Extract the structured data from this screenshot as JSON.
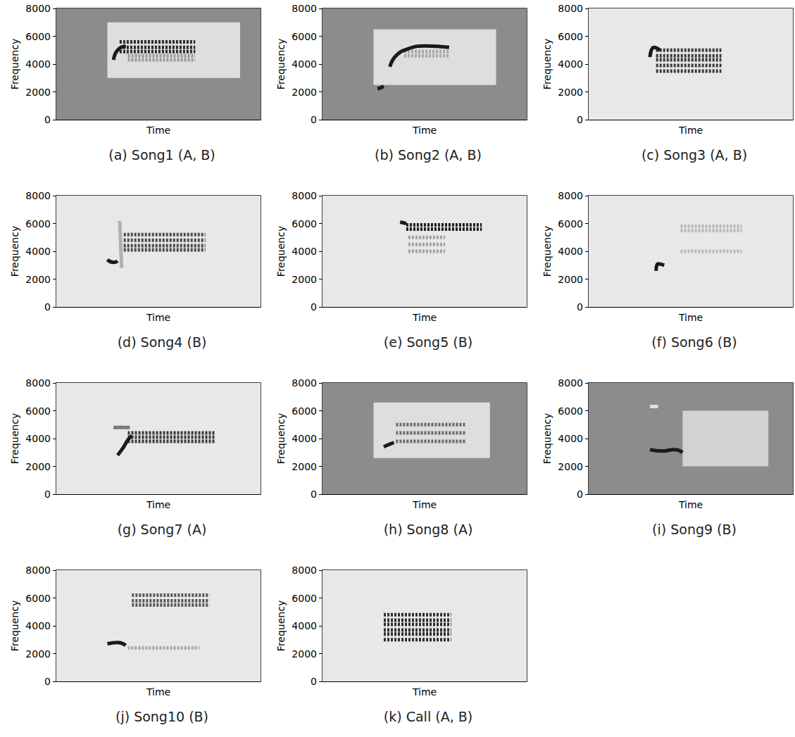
{
  "chart_data": [
    {
      "type": "spectrogram",
      "title": "(a) Song1 (A, B)",
      "xlabel": "Time",
      "ylabel": "Frequency",
      "xlim": [
        0,
        100
      ],
      "ylim": [
        0,
        8000
      ],
      "yticks": [
        0,
        2000,
        4000,
        6000,
        8000
      ],
      "tick_labels": "y",
      "layers": [
        {
          "type": "area",
          "t": [
            0,
            100
          ],
          "f": [
            0,
            8000
          ],
          "color": "#8c8c8c"
        },
        {
          "type": "area",
          "t": [
            25,
            90
          ],
          "f": [
            3000,
            7000
          ],
          "color": "#dedede"
        },
        {
          "type": "harmonics",
          "t": [
            35,
            68
          ],
          "f": [
            4300,
            4600
          ],
          "color": "#9a9a9a"
        },
        {
          "type": "harmonics",
          "t": [
            31,
            68
          ],
          "f": [
            4900,
            5200,
            5600
          ],
          "color": "#2a2a2a"
        },
        {
          "type": "line",
          "t": [
            28,
            30,
            34
          ],
          "f": [
            4300,
            5000,
            5300
          ],
          "color": "#1a1a1a"
        }
      ]
    },
    {
      "type": "spectrogram",
      "title": "(b) Song2 (A, B)",
      "xlabel": "Time",
      "ylabel": "Frequency",
      "xlim": [
        0,
        100
      ],
      "ylim": [
        0,
        8000
      ],
      "yticks": [
        0,
        2000,
        4000,
        6000,
        8000
      ],
      "tick_labels": "y",
      "layers": [
        {
          "type": "area",
          "t": [
            0,
            100
          ],
          "f": [
            0,
            8000
          ],
          "color": "#8c8c8c"
        },
        {
          "type": "area",
          "t": [
            25,
            85
          ],
          "f": [
            2500,
            6500
          ],
          "color": "#dedede"
        },
        {
          "type": "harmonics",
          "t": [
            40,
            62
          ],
          "f": [
            4600,
            4900
          ],
          "color": "#a8a8a8"
        },
        {
          "type": "line",
          "t": [
            27,
            30
          ],
          "f": [
            2200,
            2400
          ],
          "color": "#1a1a1a"
        },
        {
          "type": "line",
          "t": [
            33,
            36,
            42,
            50,
            62
          ],
          "f": [
            3800,
            4600,
            5100,
            5300,
            5200
          ],
          "color": "#1a1a1a"
        }
      ]
    },
    {
      "type": "spectrogram",
      "title": "(c) Song3 (A, B)",
      "xlabel": "Time",
      "ylabel": "Frequency",
      "xlim": [
        0,
        100
      ],
      "ylim": [
        0,
        8000
      ],
      "yticks": [
        0,
        2000,
        4000,
        6000,
        8000
      ],
      "tick_labels": "y",
      "layers": [
        {
          "type": "area",
          "t": [
            0,
            100
          ],
          "f": [
            0,
            8000
          ],
          "color": "#e8e8e8"
        },
        {
          "type": "harmonics",
          "t": [
            33,
            65
          ],
          "f": [
            3500,
            3900,
            4300,
            4600,
            5000
          ],
          "color": "#3a3a3a"
        },
        {
          "type": "line",
          "t": [
            30,
            32,
            35
          ],
          "f": [
            4500,
            5200,
            5000
          ],
          "color": "#1a1a1a"
        }
      ]
    },
    {
      "type": "spectrogram",
      "title": "(d) Song4 (B)",
      "xlabel": "Time",
      "ylabel": "Frequency",
      "xlim": [
        0,
        100
      ],
      "ylim": [
        0,
        8000
      ],
      "yticks": [
        0,
        2000,
        4000,
        6000,
        8000
      ],
      "tick_labels": "y",
      "layers": [
        {
          "type": "area",
          "t": [
            0,
            100
          ],
          "f": [
            0,
            8000
          ],
          "color": "#e8e8e8"
        },
        {
          "type": "line",
          "t": [
            32,
            31
          ],
          "f": [
            2800,
            6200
          ],
          "color": "#b0b0b0"
        },
        {
          "type": "harmonics",
          "t": [
            33,
            73
          ],
          "f": [
            4100,
            4400,
            4800,
            5200
          ],
          "color": "#4a4a4a"
        },
        {
          "type": "line",
          "t": [
            25,
            28,
            30
          ],
          "f": [
            3400,
            3200,
            3300
          ],
          "color": "#1a1a1a"
        }
      ]
    },
    {
      "type": "spectrogram",
      "title": "(e) Song5 (B)",
      "xlabel": "Time",
      "ylabel": "Frequency",
      "xlim": [
        0,
        100
      ],
      "ylim": [
        0,
        8000
      ],
      "yticks": [
        0,
        2000,
        4000,
        6000,
        8000
      ],
      "tick_labels": "y",
      "layers": [
        {
          "type": "area",
          "t": [
            0,
            100
          ],
          "f": [
            0,
            8000
          ],
          "color": "#e8e8e8"
        },
        {
          "type": "harmonics",
          "t": [
            42,
            60
          ],
          "f": [
            4000,
            4500,
            5000
          ],
          "color": "#a0a0a0"
        },
        {
          "type": "harmonics",
          "t": [
            41,
            78
          ],
          "f": [
            5600,
            5900
          ],
          "color": "#1a1a1a"
        },
        {
          "type": "line",
          "t": [
            38,
            41
          ],
          "f": [
            6100,
            6000
          ],
          "color": "#1a1a1a"
        }
      ]
    },
    {
      "type": "spectrogram",
      "title": "(f) Song6 (B)",
      "xlabel": "Time",
      "ylabel": "Frequency",
      "xlim": [
        0,
        100
      ],
      "ylim": [
        0,
        8000
      ],
      "yticks": [
        0,
        2000,
        4000,
        6000,
        8000
      ],
      "tick_labels": "y",
      "layers": [
        {
          "type": "area",
          "t": [
            0,
            100
          ],
          "f": [
            0,
            8000
          ],
          "color": "#e8e8e8"
        },
        {
          "type": "harmonics",
          "t": [
            45,
            75
          ],
          "f": [
            4000,
            5500,
            5800
          ],
          "color": "#b8b8b8"
        },
        {
          "type": "line",
          "t": [
            33,
            34,
            37
          ],
          "f": [
            2600,
            3100,
            3000
          ],
          "color": "#1a1a1a"
        }
      ]
    },
    {
      "type": "spectrogram",
      "title": "(g) Song7 (A)",
      "xlabel": "Time",
      "ylabel": "Frequency",
      "xlim": [
        0,
        100
      ],
      "ylim": [
        0,
        8000
      ],
      "yticks": [
        0,
        2000,
        4000,
        6000,
        8000
      ],
      "tick_labels": "y",
      "layers": [
        {
          "type": "area",
          "t": [
            0,
            100
          ],
          "f": [
            0,
            8000
          ],
          "color": "#e8e8e8"
        },
        {
          "type": "line",
          "t": [
            28,
            36
          ],
          "f": [
            4800,
            4800
          ],
          "color": "#7a7a7a"
        },
        {
          "type": "harmonics",
          "t": [
            35,
            78
          ],
          "f": [
            3800,
            4100,
            4400
          ],
          "color": "#3a3a3a"
        },
        {
          "type": "line",
          "t": [
            30,
            33,
            35,
            37
          ],
          "f": [
            2800,
            3400,
            3900,
            4200
          ],
          "color": "#1a1a1a"
        }
      ]
    },
    {
      "type": "spectrogram",
      "title": "(h) Song8 (A)",
      "xlabel": "Time",
      "ylabel": "Frequency",
      "xlim": [
        0,
        100
      ],
      "ylim": [
        0,
        8000
      ],
      "yticks": [
        0,
        2000,
        4000,
        6000,
        8000
      ],
      "tick_labels": "y",
      "layers": [
        {
          "type": "area",
          "t": [
            0,
            100
          ],
          "f": [
            0,
            8000
          ],
          "color": "#8c8c8c"
        },
        {
          "type": "area",
          "t": [
            25,
            82
          ],
          "f": [
            2600,
            6600
          ],
          "color": "#dedede"
        },
        {
          "type": "harmonics",
          "t": [
            36,
            70
          ],
          "f": [
            3800,
            4400,
            5000
          ],
          "color": "#6a6a6a"
        },
        {
          "type": "line",
          "t": [
            30,
            33,
            35
          ],
          "f": [
            3400,
            3600,
            3700
          ],
          "color": "#1a1a1a"
        }
      ]
    },
    {
      "type": "spectrogram",
      "title": "(i) Song9 (B)",
      "xlabel": "Time",
      "ylabel": "Frequency",
      "xlim": [
        0,
        100
      ],
      "ylim": [
        0,
        8000
      ],
      "yticks": [
        0,
        2000,
        4000,
        6000,
        8000
      ],
      "tick_labels": "y",
      "layers": [
        {
          "type": "area",
          "t": [
            0,
            100
          ],
          "f": [
            0,
            8000
          ],
          "color": "#8c8c8c"
        },
        {
          "type": "area",
          "t": [
            46,
            88
          ],
          "f": [
            2000,
            6000
          ],
          "color": "#d2d2d2"
        },
        {
          "type": "line",
          "t": [
            30,
            34
          ],
          "f": [
            6300,
            6300
          ],
          "color": "#e0e0e0"
        },
        {
          "type": "line",
          "t": [
            30,
            36,
            42,
            46
          ],
          "f": [
            3200,
            3100,
            3200,
            3000
          ],
          "color": "#1a1a1a"
        }
      ]
    },
    {
      "type": "spectrogram",
      "title": "(j) Song10 (B)",
      "xlabel": "Time",
      "ylabel": "Frequency",
      "xlim": [
        0,
        100
      ],
      "ylim": [
        0,
        8000
      ],
      "yticks": [
        0,
        2000,
        4000,
        6000,
        8000
      ],
      "tick_labels": "y",
      "layers": [
        {
          "type": "area",
          "t": [
            0,
            100
          ],
          "f": [
            0,
            8000
          ],
          "color": "#e8e8e8"
        },
        {
          "type": "harmonics",
          "t": [
            35,
            70
          ],
          "f": [
            2400
          ],
          "color": "#a8a8a8"
        },
        {
          "type": "harmonics",
          "t": [
            37,
            75
          ],
          "f": [
            5500,
            5800,
            6200
          ],
          "color": "#5a5a5a"
        },
        {
          "type": "line",
          "t": [
            25,
            30,
            34
          ],
          "f": [
            2700,
            2800,
            2600
          ],
          "color": "#1a1a1a"
        }
      ]
    },
    {
      "type": "spectrogram",
      "title": "(k) Call (A, B)",
      "xlabel": "Time",
      "ylabel": "Frequency",
      "xlim": [
        0,
        100
      ],
      "ylim": [
        0,
        8000
      ],
      "yticks": [
        0,
        2000,
        4000,
        6000,
        8000
      ],
      "tick_labels": "y",
      "layers": [
        {
          "type": "area",
          "t": [
            0,
            100
          ],
          "f": [
            0,
            8000
          ],
          "color": "#e8e8e8"
        },
        {
          "type": "harmonics",
          "t": [
            30,
            63
          ],
          "f": [
            3000,
            3400,
            3700,
            4100,
            4400,
            4800
          ],
          "color": "#2e2e2e"
        }
      ]
    }
  ]
}
